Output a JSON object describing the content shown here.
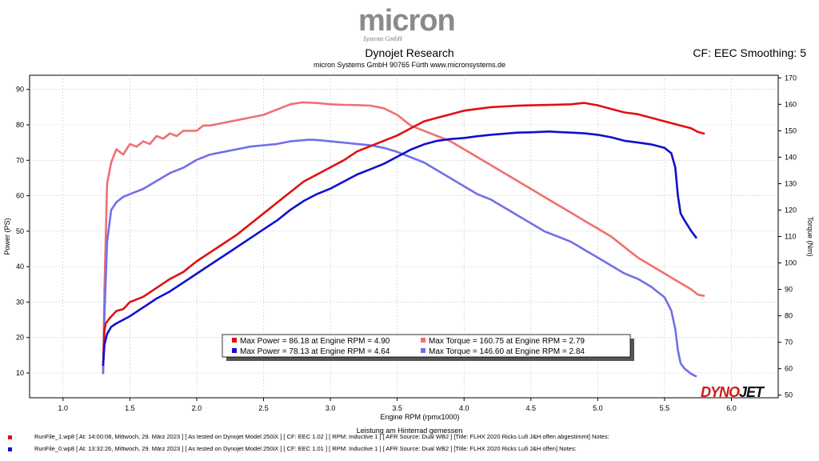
{
  "header": {
    "logo_word": "micron",
    "logo_sub": "Systems GmbH",
    "title": "Dynojet Research",
    "subtitle": "micron Systems GmbH  90765 Fürth www.micronsystems.de",
    "cf_info": "CF: EEC Smoothing: 5"
  },
  "colors": {
    "power1": "#e01010",
    "torque1": "#f07070",
    "power0": "#1010cc",
    "torque0": "#7070e8",
    "grid": "#c8c8c8"
  },
  "chart_data": {
    "type": "line",
    "xlabel": "Engine RPM (rpmx1000)",
    "ylabel_left": "Power (PS)",
    "ylabel_right": "Torque (Nm)",
    "xlim": [
      0.75,
      6.35
    ],
    "ylim_left": [
      3,
      94
    ],
    "ylim_right": [
      49,
      171
    ],
    "x_ticks": [
      "1.0",
      "1.5",
      "2.0",
      "2.5",
      "3.0",
      "3.5",
      "4.0",
      "4.5",
      "5.0",
      "5.5",
      "6.0"
    ],
    "y_left_ticks": [
      "10",
      "20",
      "30",
      "40",
      "50",
      "60",
      "70",
      "80",
      "90"
    ],
    "y_right_ticks": [
      "50",
      "60",
      "70",
      "80",
      "90",
      "100",
      "110",
      "120",
      "130",
      "140",
      "150",
      "160",
      "170"
    ],
    "grid": true,
    "legend_position": "bottom-center",
    "legend": [
      {
        "label": "Max Power = 86.18 at Engine RPM = 4.90",
        "color": "#e01010"
      },
      {
        "label": "Max Torque = 160.75 at Engine RPM = 2.79",
        "color": "#f07070"
      },
      {
        "label": "Max Power = 78.13 at Engine RPM = 4.64",
        "color": "#1010cc"
      },
      {
        "label": "Max Torque = 146.60 at Engine RPM = 2.84",
        "color": "#7070e8"
      }
    ],
    "series": [
      {
        "axis": "left",
        "color": "#e01010",
        "points": [
          [
            1.3,
            12
          ],
          [
            1.31,
            22
          ],
          [
            1.32,
            24
          ],
          [
            1.35,
            25.5
          ],
          [
            1.4,
            27.5
          ],
          [
            1.45,
            28
          ],
          [
            1.5,
            30
          ],
          [
            1.6,
            31.5
          ],
          [
            1.7,
            34
          ],
          [
            1.8,
            36.5
          ],
          [
            1.9,
            38.5
          ],
          [
            2.0,
            41.5
          ],
          [
            2.1,
            44
          ],
          [
            2.2,
            46.5
          ],
          [
            2.3,
            49
          ],
          [
            2.4,
            52
          ],
          [
            2.5,
            55
          ],
          [
            2.6,
            58
          ],
          [
            2.7,
            61
          ],
          [
            2.8,
            64
          ],
          [
            2.9,
            66
          ],
          [
            3.0,
            68
          ],
          [
            3.1,
            70
          ],
          [
            3.2,
            72.5
          ],
          [
            3.3,
            74
          ],
          [
            3.4,
            75.5
          ],
          [
            3.5,
            77
          ],
          [
            3.6,
            79
          ],
          [
            3.7,
            81
          ],
          [
            3.8,
            82
          ],
          [
            3.9,
            83
          ],
          [
            4.0,
            84
          ],
          [
            4.1,
            84.5
          ],
          [
            4.2,
            85
          ],
          [
            4.3,
            85.2
          ],
          [
            4.4,
            85.4
          ],
          [
            4.5,
            85.5
          ],
          [
            4.6,
            85.6
          ],
          [
            4.7,
            85.7
          ],
          [
            4.8,
            85.8
          ],
          [
            4.9,
            86.18
          ],
          [
            5.0,
            85.5
          ],
          [
            5.1,
            84.5
          ],
          [
            5.2,
            83.5
          ],
          [
            5.3,
            83
          ],
          [
            5.4,
            82
          ],
          [
            5.5,
            81
          ],
          [
            5.6,
            80
          ],
          [
            5.7,
            79
          ],
          [
            5.75,
            78
          ],
          [
            5.8,
            77.5
          ]
        ]
      },
      {
        "axis": "left",
        "color": "#1010cc",
        "points": [
          [
            1.3,
            12
          ],
          [
            1.31,
            18
          ],
          [
            1.33,
            21
          ],
          [
            1.36,
            23
          ],
          [
            1.4,
            24
          ],
          [
            1.45,
            25
          ],
          [
            1.5,
            26
          ],
          [
            1.6,
            28.5
          ],
          [
            1.7,
            31
          ],
          [
            1.8,
            33
          ],
          [
            1.9,
            35.5
          ],
          [
            2.0,
            38
          ],
          [
            2.1,
            40.5
          ],
          [
            2.2,
            43
          ],
          [
            2.3,
            45.5
          ],
          [
            2.4,
            48
          ],
          [
            2.5,
            50.5
          ],
          [
            2.6,
            53
          ],
          [
            2.7,
            56
          ],
          [
            2.8,
            58.5
          ],
          [
            2.9,
            60.5
          ],
          [
            3.0,
            62
          ],
          [
            3.1,
            64
          ],
          [
            3.2,
            66
          ],
          [
            3.3,
            67.5
          ],
          [
            3.4,
            69
          ],
          [
            3.5,
            71
          ],
          [
            3.6,
            73
          ],
          [
            3.7,
            74.5
          ],
          [
            3.8,
            75.5
          ],
          [
            3.9,
            76
          ],
          [
            4.0,
            76.3
          ],
          [
            4.1,
            76.8
          ],
          [
            4.2,
            77.2
          ],
          [
            4.3,
            77.5
          ],
          [
            4.4,
            77.8
          ],
          [
            4.5,
            77.9
          ],
          [
            4.64,
            78.13
          ],
          [
            4.7,
            78
          ],
          [
            4.8,
            77.8
          ],
          [
            4.9,
            77.6
          ],
          [
            5.0,
            77.2
          ],
          [
            5.1,
            76.5
          ],
          [
            5.2,
            75.5
          ],
          [
            5.3,
            75
          ],
          [
            5.4,
            74.5
          ],
          [
            5.5,
            73.5
          ],
          [
            5.55,
            72
          ],
          [
            5.58,
            68
          ],
          [
            5.6,
            60
          ],
          [
            5.62,
            55
          ],
          [
            5.65,
            53
          ],
          [
            5.7,
            50
          ],
          [
            5.74,
            48
          ]
        ]
      },
      {
        "axis": "right",
        "color": "#f07070",
        "points": [
          [
            1.3,
            58
          ],
          [
            1.31,
            90
          ],
          [
            1.33,
            130
          ],
          [
            1.36,
            138
          ],
          [
            1.4,
            143
          ],
          [
            1.45,
            141
          ],
          [
            1.5,
            145
          ],
          [
            1.55,
            144
          ],
          [
            1.6,
            146
          ],
          [
            1.65,
            145
          ],
          [
            1.7,
            148
          ],
          [
            1.75,
            147
          ],
          [
            1.8,
            149
          ],
          [
            1.85,
            148
          ],
          [
            1.9,
            150
          ],
          [
            2.0,
            150
          ],
          [
            2.05,
            152
          ],
          [
            2.1,
            152
          ],
          [
            2.2,
            153
          ],
          [
            2.3,
            154
          ],
          [
            2.4,
            155
          ],
          [
            2.5,
            156
          ],
          [
            2.6,
            158
          ],
          [
            2.7,
            160
          ],
          [
            2.79,
            160.75
          ],
          [
            2.9,
            160.5
          ],
          [
            3.0,
            160
          ],
          [
            3.1,
            159.8
          ],
          [
            3.2,
            159.7
          ],
          [
            3.3,
            159.5
          ],
          [
            3.4,
            158.5
          ],
          [
            3.5,
            156
          ],
          [
            3.6,
            152
          ],
          [
            3.7,
            150
          ],
          [
            3.8,
            148
          ],
          [
            3.9,
            146
          ],
          [
            4.0,
            143
          ],
          [
            4.1,
            140
          ],
          [
            4.2,
            137
          ],
          [
            4.3,
            134
          ],
          [
            4.4,
            131
          ],
          [
            4.5,
            128
          ],
          [
            4.6,
            125
          ],
          [
            4.7,
            122
          ],
          [
            4.8,
            119
          ],
          [
            4.9,
            116
          ],
          [
            5.0,
            113
          ],
          [
            5.1,
            110
          ],
          [
            5.2,
            106
          ],
          [
            5.3,
            102
          ],
          [
            5.4,
            99
          ],
          [
            5.5,
            96
          ],
          [
            5.6,
            93
          ],
          [
            5.7,
            90
          ],
          [
            5.75,
            88
          ],
          [
            5.8,
            87.5
          ]
        ]
      },
      {
        "axis": "right",
        "color": "#7070e8",
        "points": [
          [
            1.3,
            58
          ],
          [
            1.31,
            80
          ],
          [
            1.33,
            108
          ],
          [
            1.36,
            120
          ],
          [
            1.4,
            123
          ],
          [
            1.45,
            125
          ],
          [
            1.5,
            126
          ],
          [
            1.55,
            127
          ],
          [
            1.6,
            128
          ],
          [
            1.7,
            131
          ],
          [
            1.8,
            134
          ],
          [
            1.9,
            136
          ],
          [
            2.0,
            139
          ],
          [
            2.1,
            141
          ],
          [
            2.2,
            142
          ],
          [
            2.3,
            143
          ],
          [
            2.4,
            144
          ],
          [
            2.5,
            144.5
          ],
          [
            2.6,
            145
          ],
          [
            2.7,
            146
          ],
          [
            2.84,
            146.6
          ],
          [
            2.9,
            146.5
          ],
          [
            3.0,
            146
          ],
          [
            3.1,
            145.5
          ],
          [
            3.2,
            145
          ],
          [
            3.3,
            144.5
          ],
          [
            3.4,
            143.5
          ],
          [
            3.5,
            142
          ],
          [
            3.6,
            140
          ],
          [
            3.7,
            138
          ],
          [
            3.8,
            135
          ],
          [
            3.9,
            132
          ],
          [
            4.0,
            129
          ],
          [
            4.1,
            126
          ],
          [
            4.2,
            124
          ],
          [
            4.3,
            121
          ],
          [
            4.4,
            118
          ],
          [
            4.5,
            115
          ],
          [
            4.6,
            112
          ],
          [
            4.7,
            110
          ],
          [
            4.8,
            108
          ],
          [
            4.9,
            105
          ],
          [
            5.0,
            102
          ],
          [
            5.1,
            99
          ],
          [
            5.2,
            96
          ],
          [
            5.3,
            94
          ],
          [
            5.4,
            91
          ],
          [
            5.5,
            87
          ],
          [
            5.55,
            82
          ],
          [
            5.58,
            75
          ],
          [
            5.6,
            67
          ],
          [
            5.62,
            62
          ],
          [
            5.65,
            60
          ],
          [
            5.7,
            58
          ],
          [
            5.74,
            57
          ]
        ]
      }
    ]
  },
  "footer": {
    "note": "Leistung am Hinterrad gemessen",
    "dyno_logo_a": "DYNO",
    "dyno_logo_b": "JET",
    "runs": [
      {
        "text": "RunFile_1.wp8  [  At:  14:00:08,  Mittwoch,  29.  März  2023  ]  [  As  tested  on  Dynojet  Model  250iX  ]  [  CF:  EEC  1.02  ]  [  RPM:  Inductive  1  ]  [  AFR  Source:  Dual  WB2  ]  [Title:  FLHX  2020  Ricks  Lufi  J&H  offen  abgestimmt]   Notes:",
        "color": "#e01010"
      },
      {
        "text": "RunFile_0.wp8  [  At:  13:32:26,  Mittwoch,  29.  März  2023  ]  [  As  tested  on  Dynojet  Model  250iX  ]  [  CF:  EEC  1.01  ]  [  RPM:  Inductive  1  ]  [  AFR  Source:  Dual  WB2  ]  [Title:  FLHX  2020  Ricks  Lufi  J&H  offen]   Notes:",
        "color": "#1010cc"
      }
    ]
  }
}
